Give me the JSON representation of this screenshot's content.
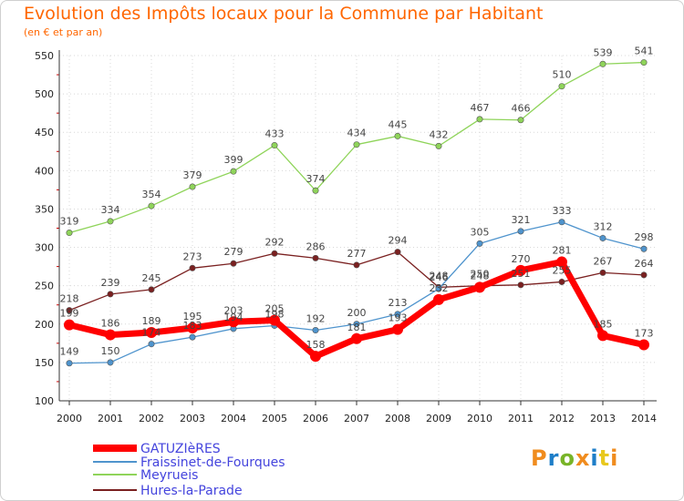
{
  "header": {
    "title": "Evolution des Impôts locaux pour la Commune par Habitant",
    "subtitle": "(en € et par an)"
  },
  "logo": {
    "text": "Proxiti",
    "colors": [
      "#f08c1e",
      "#1e7ec8",
      "#78b428",
      "#f08c1e",
      "#1e7ec8",
      "#e8c81e",
      "#f08c1e"
    ]
  },
  "chart_data": {
    "type": "line",
    "title": "Evolution des Impôts locaux pour la Commune par Habitant",
    "subtitle": "(en € et par an)",
    "x": [
      2000,
      2001,
      2002,
      2003,
      2004,
      2005,
      2006,
      2007,
      2008,
      2009,
      2010,
      2011,
      2012,
      2013,
      2014
    ],
    "yticks": [
      100,
      150,
      200,
      250,
      300,
      350,
      400,
      450,
      500,
      550
    ],
    "ylim": [
      100,
      550
    ],
    "grid": true,
    "legend": "bottom-left",
    "series": [
      {
        "name": "GATUZIèRES",
        "color": "#ff0000",
        "values": [
          199,
          186,
          189,
          195,
          203,
          205,
          158,
          181,
          193,
          232,
          248,
          270,
          281,
          185,
          173
        ]
      },
      {
        "name": "Fraissinet-de-Fourques",
        "color": "#4f94cd",
        "values": [
          149,
          150,
          174,
          183,
          194,
          198,
          192,
          200,
          213,
          246,
          305,
          321,
          333,
          312,
          298
        ]
      },
      {
        "name": "Meyrueis",
        "color": "#8fd45a",
        "values": [
          319,
          334,
          354,
          379,
          399,
          433,
          374,
          434,
          445,
          432,
          467,
          466,
          510,
          539,
          541
        ]
      },
      {
        "name": "Hures-la-Parade",
        "color": "#7a2020",
        "values": [
          218,
          239,
          245,
          273,
          279,
          292,
          286,
          277,
          294,
          248,
          250,
          251,
          255,
          267,
          264
        ]
      }
    ]
  }
}
